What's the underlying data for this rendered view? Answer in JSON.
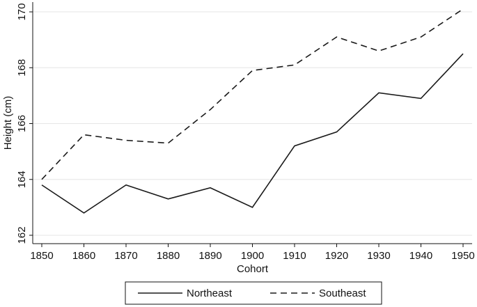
{
  "chart_data": {
    "type": "line",
    "x": [
      1850,
      1860,
      1870,
      1880,
      1890,
      1900,
      1910,
      1920,
      1930,
      1940,
      1950
    ],
    "xlabel": "Cohort",
    "ylabel": "Height (cm)",
    "series": [
      {
        "name": "Northeast",
        "color": "#1a1a1a",
        "dash": "solid",
        "values": [
          163.8,
          162.8,
          163.8,
          163.3,
          163.7,
          163.0,
          165.2,
          165.7,
          167.1,
          166.9,
          168.5
        ]
      },
      {
        "name": "Southeast",
        "color": "#1a1a1a",
        "dash": "dashed",
        "values": [
          164.0,
          165.6,
          165.4,
          165.3,
          166.5,
          167.9,
          168.1,
          169.1,
          168.6,
          169.1,
          170.1
        ]
      }
    ],
    "xlim": [
      1847.85,
      1952.15
    ],
    "ylim": [
      161.7,
      170.35
    ],
    "xticks": [
      1850,
      1860,
      1870,
      1880,
      1890,
      1900,
      1910,
      1920,
      1930,
      1940,
      1950
    ],
    "yticks": [
      162,
      164,
      166,
      168,
      170
    ],
    "grid": true,
    "legend": "bottom"
  }
}
